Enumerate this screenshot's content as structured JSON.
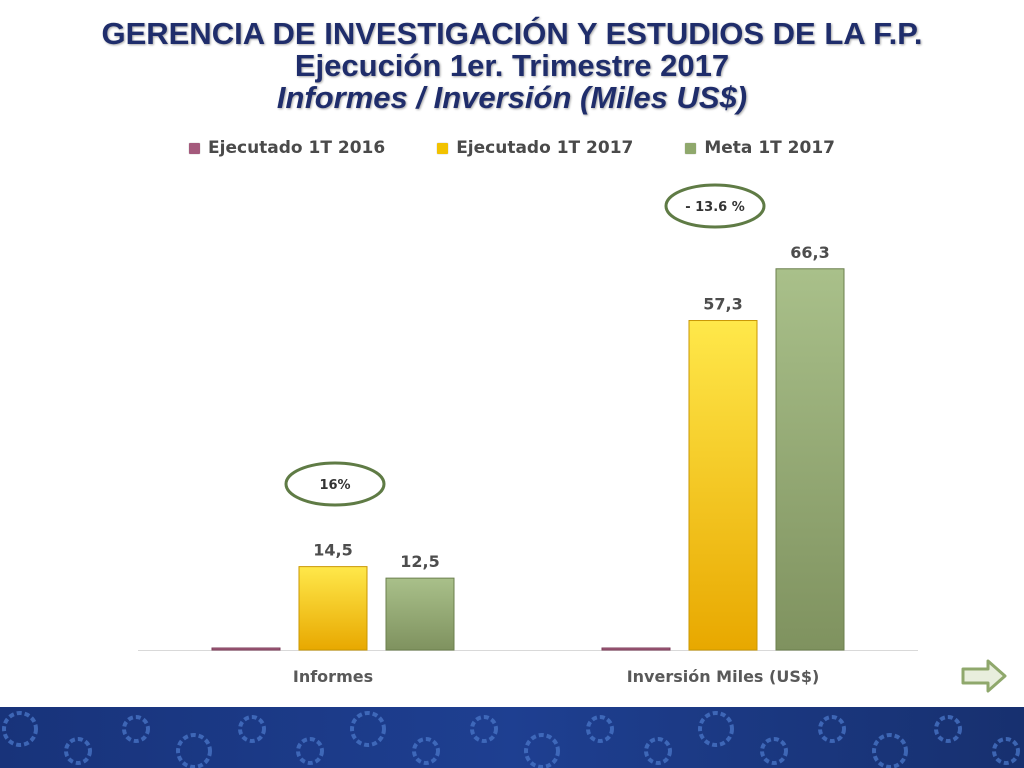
{
  "slide": {
    "title_line1": "GERENCIA DE INVESTIGACIÓN Y ESTUDIOS DE LA F.P.",
    "title_line2": "Ejecución 1er. Trimestre 2017",
    "title_line3": "Informes / Inversión (Miles US$)"
  },
  "colors": {
    "title": "#1f2d6b",
    "series_2016": "#a45a7c",
    "series_2017": "#f2c200",
    "series_meta": "#8fa86c",
    "ellipse_stroke": "#5f7b45",
    "footer": "#1e3f91"
  },
  "chart_data": {
    "type": "bar",
    "categories": [
      "Informes",
      "Inversión Miles (US$)"
    ],
    "series": [
      {
        "name": "Ejecutado 1T 2016",
        "values": [
          0,
          0
        ],
        "labels": [
          "",
          ""
        ]
      },
      {
        "name": "Ejecutado 1T 2017",
        "values": [
          14.5,
          57.3
        ],
        "labels": [
          "14,5",
          "57,3"
        ]
      },
      {
        "name": "Meta 1T 2017",
        "values": [
          12.5,
          66.3
        ],
        "labels": [
          "12,5",
          "66,3"
        ]
      }
    ],
    "annotations": [
      "16%",
      "- 13.6 %"
    ],
    "legend_position": "top",
    "grid": false,
    "ylim": [
      0,
      80
    ]
  },
  "icons": {
    "next": "right-arrow-icon",
    "footer_pattern": "gear-pattern"
  }
}
